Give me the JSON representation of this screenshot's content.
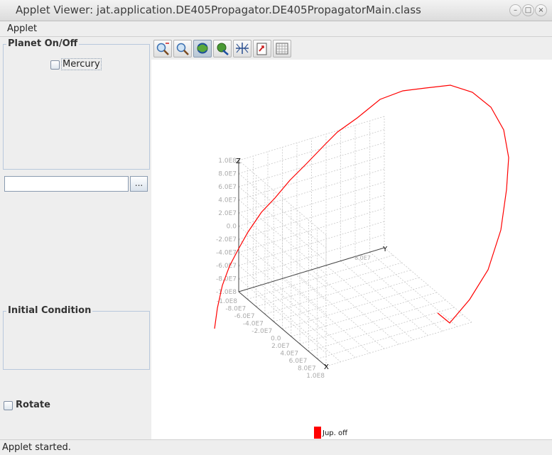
{
  "window": {
    "title": "Applet Viewer: jat.application.DE405Propagator.DE405PropagatorMain.class"
  },
  "menubar": {
    "items": [
      "Applet"
    ]
  },
  "left_panel": {
    "planet_group": {
      "title": "Planet On/Off",
      "checkbox_label": "Mercury",
      "checked": false
    },
    "file_field": {
      "value": "",
      "browse_label": "..."
    },
    "initial_condition": {
      "title": "Initial Condition"
    },
    "rotate": {
      "label": "Rotate",
      "checked": false
    }
  },
  "toolbar": {
    "tools": [
      "zoom-in-icon",
      "zoom-icon",
      "rotate-icon",
      "translate-icon",
      "center-icon",
      "export-icon",
      "grid-icon"
    ],
    "active_tool": "rotate-icon"
  },
  "plot": {
    "axis_z": {
      "label": "Z",
      "ticks": [
        "1.0E8",
        "8.0E7",
        "6.0E7",
        "4.0E7",
        "2.0E7",
        "0.0",
        "-2.0E7",
        "-4.0E7",
        "-6.0E7",
        "-8.0E7",
        "-1.0E8"
      ]
    },
    "axis_y": {
      "label": "Y",
      "ticks": [
        "8.0E7"
      ]
    },
    "axis_x": {
      "label": "X",
      "ticks": [
        "-1.0E8",
        "-8.0E7",
        "-6.0E7",
        "-4.0E7",
        "-2.0E7",
        "0.0",
        "2.0E7",
        "4.0E7",
        "6.0E7",
        "8.0E7",
        "1.0E8"
      ]
    },
    "series_color": "#ff0000",
    "legend": {
      "label": "Jup. off",
      "color": "#ff0000"
    }
  },
  "status": {
    "text": "Applet started."
  }
}
